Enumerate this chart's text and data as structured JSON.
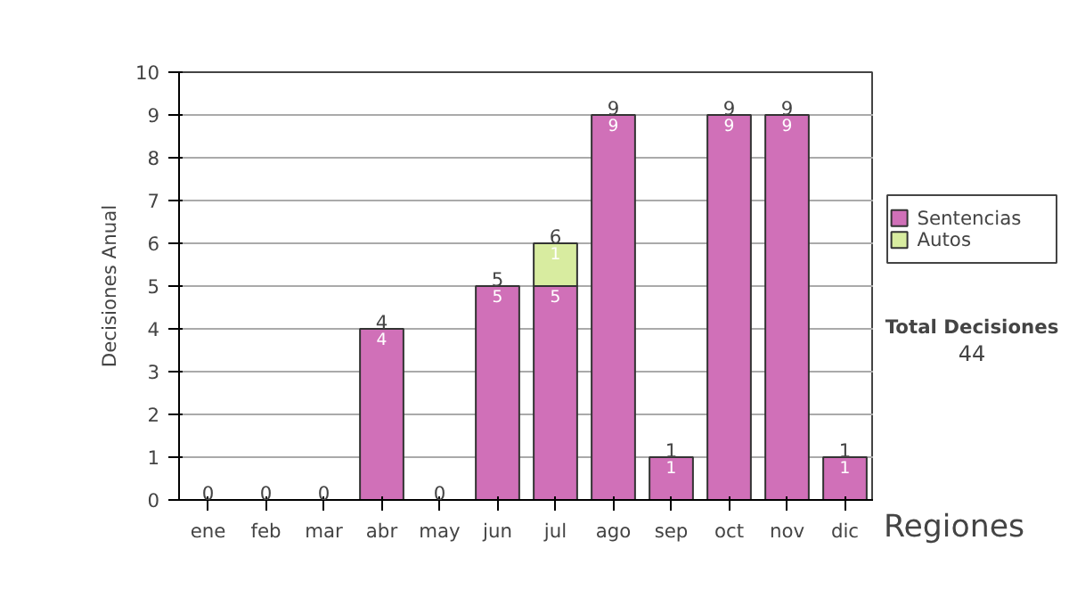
{
  "chart_data": {
    "type": "bar",
    "stacked": true,
    "ylabel": "Decisiones Anual",
    "categories": [
      "ene",
      "feb",
      "mar",
      "abr",
      "may",
      "jun",
      "jul",
      "ago",
      "sep",
      "oct",
      "nov",
      "dic"
    ],
    "series": [
      {
        "name": "Sentencias",
        "color": "#d070b8",
        "values": [
          0,
          0,
          0,
          4,
          0,
          5,
          5,
          9,
          1,
          9,
          9,
          1
        ],
        "value_labels": [
          null,
          null,
          null,
          "4",
          null,
          "5",
          "5",
          "9",
          "1",
          "9",
          "9",
          "1"
        ]
      },
      {
        "name": "Autos",
        "color": "#d8eca0",
        "values": [
          0,
          0,
          0,
          0,
          0,
          0,
          1,
          0,
          0,
          0,
          0,
          0
        ],
        "value_labels": [
          null,
          null,
          null,
          null,
          null,
          null,
          "1",
          null,
          null,
          null,
          null,
          null
        ]
      }
    ],
    "totals": [
      "0",
      "0",
      "0",
      "4",
      "0",
      "5",
      "6",
      "9",
      "1",
      "9",
      "9",
      "1"
    ],
    "ylim": [
      0,
      10
    ],
    "yticks": [
      0,
      1,
      2,
      3,
      4,
      5,
      6,
      7,
      8,
      9,
      10
    ],
    "grid": "y",
    "legend": "right",
    "annotations": [
      "Total Decisiones",
      "44",
      "Regiones"
    ]
  }
}
